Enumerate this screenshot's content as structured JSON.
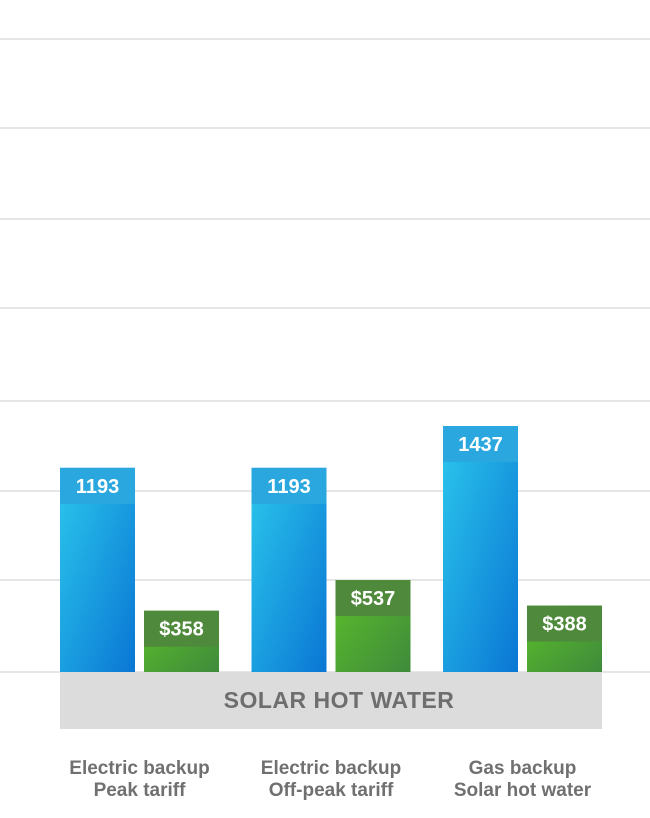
{
  "chart_data": {
    "type": "bar",
    "band_label": "SOLAR HOT WATER",
    "categories": [
      [
        "Electric backup",
        "Peak tariff"
      ],
      [
        "Electric backup",
        "Off-peak tariff"
      ],
      [
        "Gas backup",
        "Solar hot water"
      ]
    ],
    "series": [
      {
        "values": [
          1193,
          1193,
          1437
        ],
        "labels": [
          "1193",
          "1193",
          "1437"
        ],
        "color_top": "#2bc7ec",
        "color_bottom": "#0a76d4",
        "cap_color": "#2aa7de"
      },
      {
        "values": [
          358,
          537,
          388
        ],
        "labels": [
          "$358",
          "$537",
          "$388"
        ],
        "color_top": "#5cbf2a",
        "color_bottom": "#3f8a3b",
        "cap_color": "#4f8a3c"
      }
    ],
    "grid": true,
    "grid_color": "#dedede",
    "band_color": "#dcdcdc"
  }
}
